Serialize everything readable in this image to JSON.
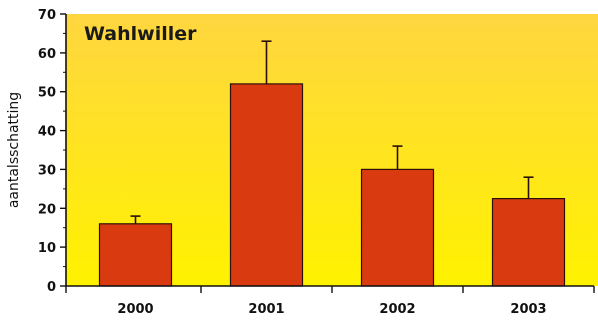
{
  "chart_data": {
    "type": "bar",
    "title": "Wahlwiller",
    "xlabel": "",
    "ylabel": "aantalsschatting",
    "categories": [
      "2000",
      "2001",
      "2002",
      "2003"
    ],
    "values": [
      16,
      52,
      30,
      22.5
    ],
    "error_upper": [
      18,
      63,
      36,
      28
    ],
    "ylim": [
      0,
      70
    ],
    "yticks": [
      0,
      10,
      20,
      30,
      40,
      50,
      60,
      70
    ],
    "grid": false,
    "legend": "none",
    "colors": {
      "bar_fill": "#d93a10",
      "bar_stroke": "#2a1008",
      "background_top": "#ffd640",
      "background_bottom": "#fff200",
      "axis": "#111111"
    }
  }
}
